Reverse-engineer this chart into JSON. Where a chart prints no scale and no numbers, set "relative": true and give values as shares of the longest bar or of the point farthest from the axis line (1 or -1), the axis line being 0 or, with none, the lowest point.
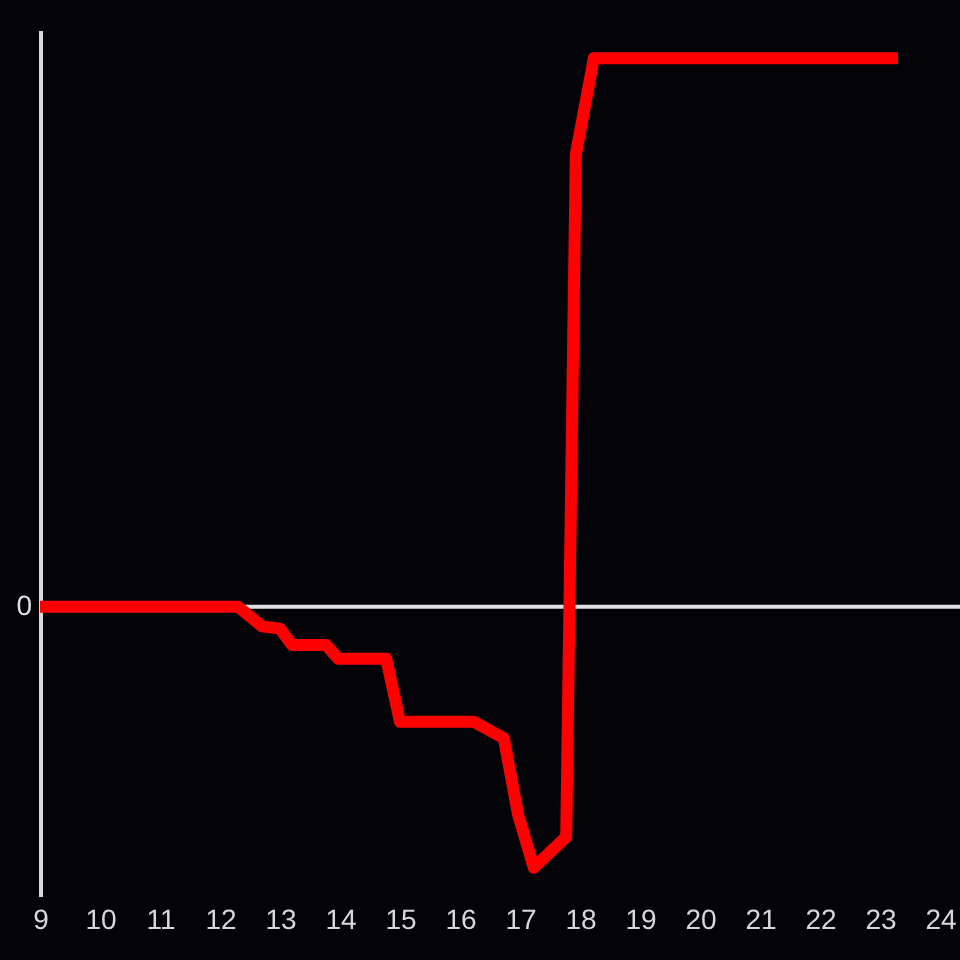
{
  "chart_data": {
    "type": "line",
    "relative": true,
    "color": "#ff0000",
    "line_style": "solid",
    "x": [
      9,
      12.3,
      12.7,
      13.0,
      13.2,
      13.77,
      13.97,
      14.77,
      15.0,
      16.23,
      16.73,
      16.97,
      17.23,
      17.77,
      17.93,
      18.23,
      23.3
    ],
    "values": [
      0,
      0,
      -0.036,
      -0.04,
      -0.07,
      -0.07,
      -0.095,
      -0.095,
      -0.21,
      -0.21,
      -0.24,
      -0.38,
      -0.476,
      -0.42,
      0.825,
      1,
      1
    ],
    "xlim": [
      9,
      24
    ],
    "xticks": [
      9,
      10,
      11,
      12,
      13,
      14,
      15,
      16,
      17,
      18,
      19,
      20,
      21,
      22,
      23,
      24
    ],
    "ref_lines": [
      {
        "axis": "y",
        "value": 0,
        "label": "0",
        "color": "#e0e0e0"
      }
    ]
  }
}
